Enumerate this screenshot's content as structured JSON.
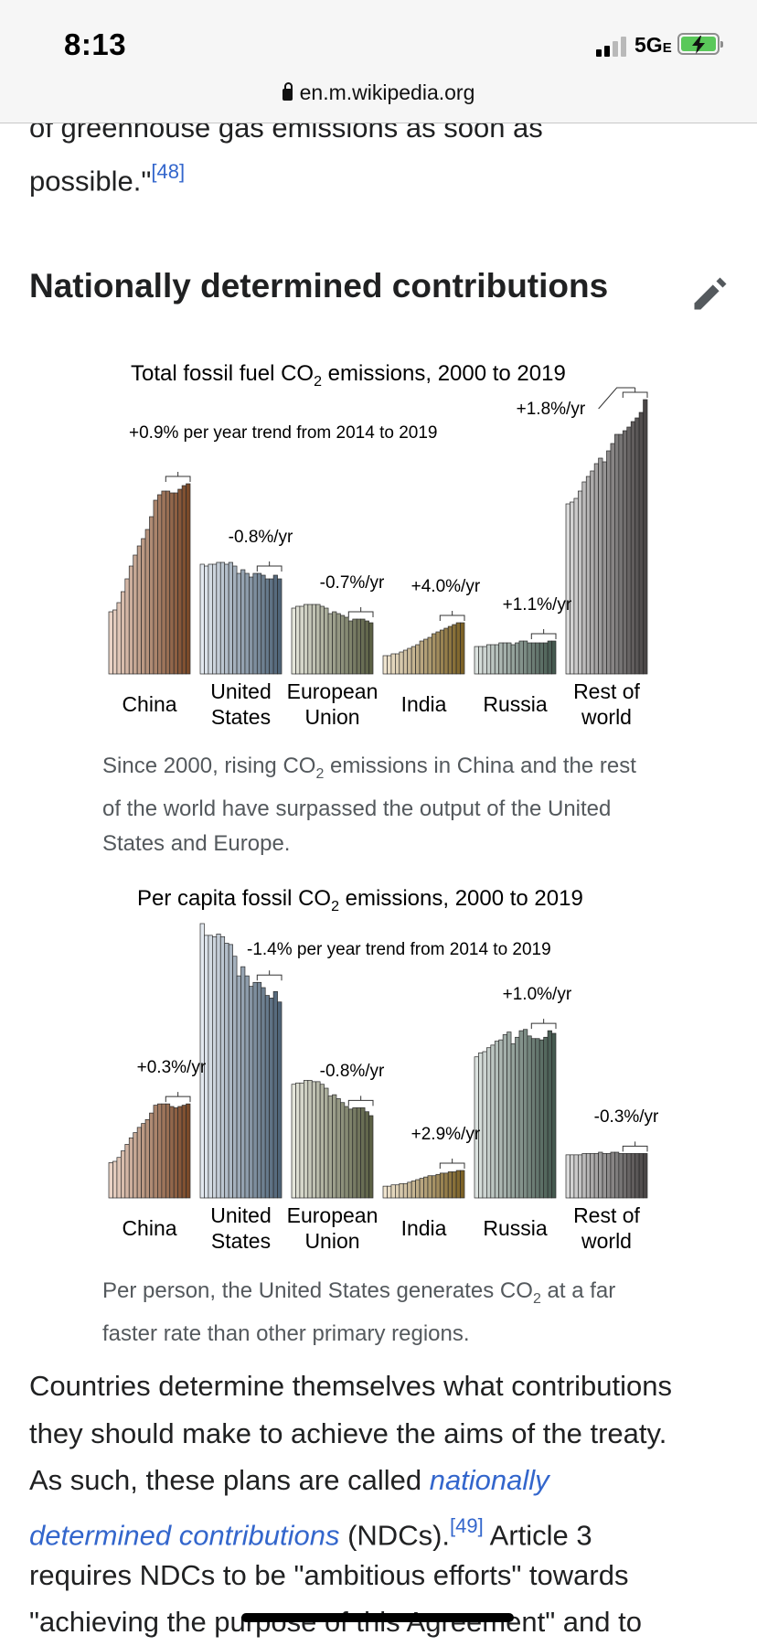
{
  "status_bar": {
    "time": "8:13",
    "network": "5G",
    "network_suffix": "E",
    "url": "en.m.wikipedia.org"
  },
  "article": {
    "prev_text_line1": "of greenhouse gas emissions as soon as",
    "prev_text_line2": "possible.\"",
    "prev_ref": "[48]",
    "section_heading": "Nationally determined contributions",
    "edit_icon": "pencil-icon",
    "caption1": {
      "pre": "Since 2000, rising CO",
      "sub": "2",
      "post": " emissions in China and the rest of the world have surpassed the output of the United States and Europe."
    },
    "caption2": {
      "pre": "Per person, the United States generates CO",
      "sub": "2",
      "post": " at a far faster rate than other primary regions."
    },
    "para": {
      "line1": "Countries determine themselves what contributions",
      "line2": "they should make to achieve the aims of the treaty.",
      "line3_pre": "As such, these plans are called ",
      "link_part1": "nationally",
      "link_part2": "determined contributions",
      "line4_post": " (NDCs).",
      "ref": "[49]",
      "line4_tail": " Article 3",
      "line5": "requires NDCs to be \"ambitious efforts\" towards",
      "line6": "\"achieving the purpose of this Agreement\" and to"
    }
  },
  "chart_data": [
    {
      "type": "bar",
      "title_pre": "Total fossil fuel CO",
      "title_sub": "2",
      "title_post": " emissions, 2000 to 2019",
      "xlabel": "",
      "ylabel": "",
      "x": [
        2000,
        2001,
        2002,
        2003,
        2004,
        2005,
        2006,
        2007,
        2008,
        2009,
        2010,
        2011,
        2012,
        2013,
        2014,
        2015,
        2016,
        2017,
        2018,
        2019
      ],
      "ylim": [
        0,
        15
      ],
      "categories": [
        "China",
        "United States",
        "European Union",
        "India",
        "Russia",
        "Rest of world"
      ],
      "category_lines": [
        [
          "China"
        ],
        [
          "United",
          "States"
        ],
        [
          "European",
          "Union"
        ],
        [
          "India"
        ],
        [
          "Russia"
        ],
        [
          "Rest of",
          "world"
        ]
      ],
      "series": [
        {
          "name": "China",
          "color_start": "#ead3c6",
          "color_end": "#7b4a2a",
          "trend": "+0.9% per year trend from 2014 to 2019",
          "values": [
            3.4,
            3.5,
            3.9,
            4.5,
            5.2,
            5.9,
            6.5,
            7.0,
            7.4,
            7.9,
            8.6,
            9.5,
            9.8,
            10.0,
            10.0,
            9.9,
            9.9,
            10.1,
            10.3,
            10.4
          ]
        },
        {
          "name": "United States",
          "color_start": "#e3e9f0",
          "color_end": "#4f6478",
          "trend": "-0.8%/yr",
          "values": [
            6.0,
            5.9,
            6.0,
            6.0,
            6.1,
            6.1,
            6.0,
            6.1,
            5.9,
            5.5,
            5.7,
            5.5,
            5.3,
            5.5,
            5.5,
            5.4,
            5.2,
            5.2,
            5.4,
            5.2
          ]
        },
        {
          "name": "European Union",
          "color_start": "#e4e5da",
          "color_end": "#5b6044",
          "trend": "-0.7%/yr",
          "values": [
            3.6,
            3.7,
            3.7,
            3.8,
            3.8,
            3.8,
            3.8,
            3.7,
            3.6,
            3.3,
            3.4,
            3.3,
            3.2,
            3.1,
            2.9,
            3.0,
            3.0,
            3.0,
            2.9,
            2.8
          ]
        },
        {
          "name": "India",
          "color_start": "#efe4cf",
          "color_end": "#7c6227",
          "trend": "+4.0%/yr",
          "values": [
            1.0,
            1.0,
            1.1,
            1.1,
            1.2,
            1.3,
            1.4,
            1.5,
            1.6,
            1.8,
            1.9,
            2.0,
            2.2,
            2.3,
            2.4,
            2.5,
            2.6,
            2.7,
            2.8,
            2.8
          ]
        },
        {
          "name": "Russia",
          "color_start": "#dce3e0",
          "color_end": "#44594f",
          "trend": "+1.1%/yr",
          "values": [
            1.5,
            1.5,
            1.5,
            1.6,
            1.6,
            1.6,
            1.7,
            1.7,
            1.7,
            1.6,
            1.7,
            1.8,
            1.8,
            1.7,
            1.7,
            1.7,
            1.7,
            1.7,
            1.8,
            1.8
          ]
        },
        {
          "name": "Rest of world",
          "color_start": "#dadada",
          "color_end": "#4a4646",
          "trend": "+1.8%/yr",
          "values": [
            9.3,
            9.4,
            9.6,
            10.0,
            10.5,
            10.8,
            11.1,
            11.5,
            11.8,
            11.6,
            12.2,
            12.6,
            13.1,
            13.1,
            13.3,
            13.5,
            13.8,
            14.0,
            14.3,
            15.0
          ]
        }
      ]
    },
    {
      "type": "bar",
      "title_pre": "Per capita fossil CO",
      "title_sub": "2",
      "title_post": " emissions, 2000 to 2019",
      "xlabel": "",
      "ylabel": "",
      "x": [
        2000,
        2001,
        2002,
        2003,
        2004,
        2005,
        2006,
        2007,
        2008,
        2009,
        2010,
        2011,
        2012,
        2013,
        2014,
        2015,
        2016,
        2017,
        2018,
        2019
      ],
      "ylim": [
        0,
        21
      ],
      "categories": [
        "China",
        "United States",
        "European Union",
        "India",
        "Russia",
        "Rest of world"
      ],
      "category_lines": [
        [
          "China"
        ],
        [
          "United",
          "States"
        ],
        [
          "European",
          "Union"
        ],
        [
          "India"
        ],
        [
          "Russia"
        ],
        [
          "Rest of",
          "world"
        ]
      ],
      "series": [
        {
          "name": "China",
          "color_start": "#ead3c6",
          "color_end": "#7b4a2a",
          "trend": "+0.3%/yr",
          "values": [
            2.7,
            2.8,
            3.1,
            3.6,
            4.1,
            4.6,
            5.0,
            5.4,
            5.7,
            6.0,
            6.5,
            7.1,
            7.2,
            7.2,
            7.2,
            7.0,
            6.9,
            7.0,
            7.1,
            7.2
          ]
        },
        {
          "name": "United States",
          "color_start": "#e3e9f0",
          "color_end": "#4f6478",
          "trend": "-1.4% per year trend from 2014 to 2019",
          "values": [
            21.0,
            20.1,
            20.1,
            20.0,
            20.2,
            20.0,
            19.5,
            19.4,
            18.5,
            17.0,
            17.7,
            17.0,
            16.2,
            16.5,
            16.5,
            16.1,
            15.5,
            15.3,
            15.8,
            15.0
          ]
        },
        {
          "name": "European Union",
          "color_start": "#e4e5da",
          "color_end": "#5b6044",
          "trend": "-0.8%/yr",
          "values": [
            8.7,
            8.8,
            8.8,
            9.0,
            9.0,
            8.9,
            8.9,
            8.7,
            8.4,
            7.8,
            7.9,
            7.6,
            7.3,
            7.0,
            6.8,
            6.9,
            6.9,
            6.9,
            6.6,
            6.3
          ]
        },
        {
          "name": "India",
          "color_start": "#efe4cf",
          "color_end": "#7c6227",
          "trend": "+2.9%/yr",
          "values": [
            0.9,
            0.9,
            1.0,
            1.0,
            1.1,
            1.1,
            1.2,
            1.3,
            1.4,
            1.5,
            1.6,
            1.7,
            1.7,
            1.8,
            1.9,
            1.9,
            2.0,
            2.0,
            2.1,
            2.1
          ]
        },
        {
          "name": "Russia",
          "color_start": "#dce3e0",
          "color_end": "#44594f",
          "trend": "+1.0%/yr",
          "values": [
            10.8,
            11.1,
            11.2,
            11.5,
            11.7,
            12.0,
            12.1,
            12.5,
            12.7,
            11.8,
            12.3,
            12.8,
            12.9,
            12.4,
            12.2,
            12.2,
            12.1,
            12.3,
            12.8,
            12.6
          ]
        },
        {
          "name": "Rest of world",
          "color_start": "#dadada",
          "color_end": "#4a4646",
          "trend": "-0.3%/yr",
          "values": [
            3.3,
            3.3,
            3.3,
            3.3,
            3.4,
            3.4,
            3.4,
            3.4,
            3.5,
            3.4,
            3.4,
            3.5,
            3.5,
            3.4,
            3.4,
            3.4,
            3.4,
            3.4,
            3.4,
            3.4
          ]
        }
      ]
    }
  ]
}
